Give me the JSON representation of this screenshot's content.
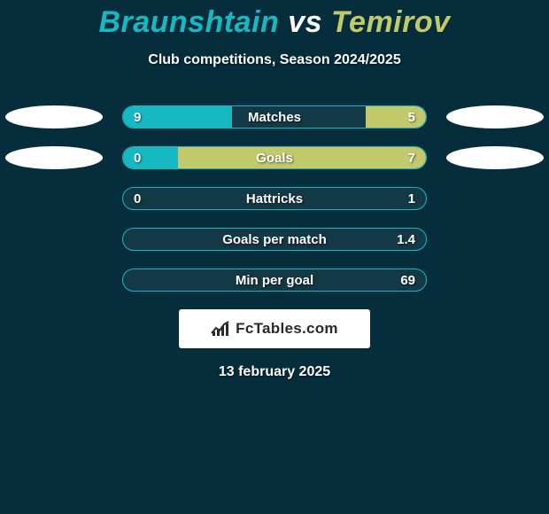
{
  "colors": {
    "background": "#062d3b",
    "title_p1": "#16b9c2",
    "title_vs": "#ffffff",
    "title_p2": "#c1c96b",
    "subtitle": "#ffffff",
    "oval_fill": "#ffffff",
    "bar_frame_border": "#16b9c2",
    "fill_left": "#16b9c2",
    "fill_right": "#c1c96b",
    "bar_bg": "rgba(255,255,255,0.06)",
    "brand_bg": "#ffffff",
    "brand_text": "#2a2a2a",
    "date_text": "#ffffff"
  },
  "title": {
    "p1": "Braunshtain",
    "vs": "vs",
    "p2": "Temirov"
  },
  "subtitle": "Club competitions, Season 2024/2025",
  "rows": [
    {
      "label": "Matches",
      "left_val": "9",
      "right_val": "5",
      "left_pct": 36,
      "right_pct": 20,
      "show_ovals": true
    },
    {
      "label": "Goals",
      "left_val": "0",
      "right_val": "7",
      "left_pct": 18,
      "right_pct": 82,
      "show_ovals": true
    },
    {
      "label": "Hattricks",
      "left_val": "0",
      "right_val": "1",
      "left_pct": 0,
      "right_pct": 0,
      "show_ovals": false
    },
    {
      "label": "Goals per match",
      "left_val": "",
      "right_val": "1.4",
      "left_pct": 0,
      "right_pct": 0,
      "show_ovals": false
    },
    {
      "label": "Min per goal",
      "left_val": "",
      "right_val": "69",
      "left_pct": 0,
      "right_pct": 0,
      "show_ovals": false
    }
  ],
  "brand": "FcTables.com",
  "date": "13 february 2025"
}
